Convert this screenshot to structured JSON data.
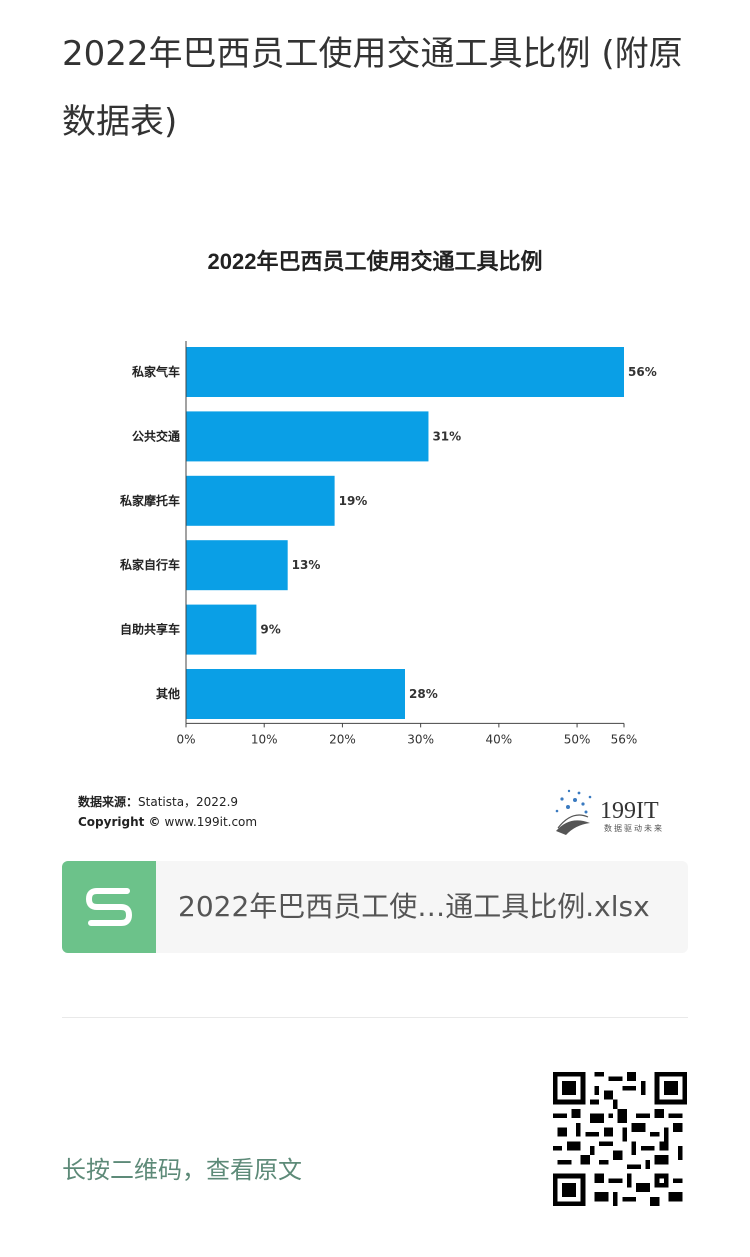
{
  "article": {
    "title": "2022年巴西员工使用交通工具比例 (附原数据表)"
  },
  "chart_data": {
    "type": "bar",
    "orientation": "horizontal",
    "title": "2022年巴西员工使用交通工具比例",
    "categories": [
      "私家气车",
      "公共交通",
      "私家摩托车",
      "私家自行车",
      "自助共享车",
      "其他"
    ],
    "values": [
      56,
      31,
      19,
      13,
      9,
      28
    ],
    "value_labels": [
      "56%",
      "31%",
      "19%",
      "13%",
      "9%",
      "28%"
    ],
    "xlim": [
      0,
      56
    ],
    "x_ticks": [
      0,
      10,
      20,
      30,
      40,
      50,
      56
    ],
    "x_tick_labels": [
      "0%",
      "10%",
      "20%",
      "30%",
      "40%",
      "50%",
      "56%"
    ],
    "bar_color": "#0a9fe6",
    "grid": false,
    "source_label": "数据来源：",
    "source_value": "Statista，2022.9",
    "copyright_label": "Copyright ©",
    "copyright_value": "www.199it.com",
    "logo_text": "199IT",
    "logo_tagline": "数据驱动未来"
  },
  "attachment": {
    "file_icon": "spreadsheet-s-icon",
    "file_name": "2022年巴西员工使…通工具比例.xlsx",
    "badge_color": "#6cc28a"
  },
  "footer": {
    "qr_hint": "长按二维码，查看原文",
    "qr_icon": "qr-code-icon"
  }
}
